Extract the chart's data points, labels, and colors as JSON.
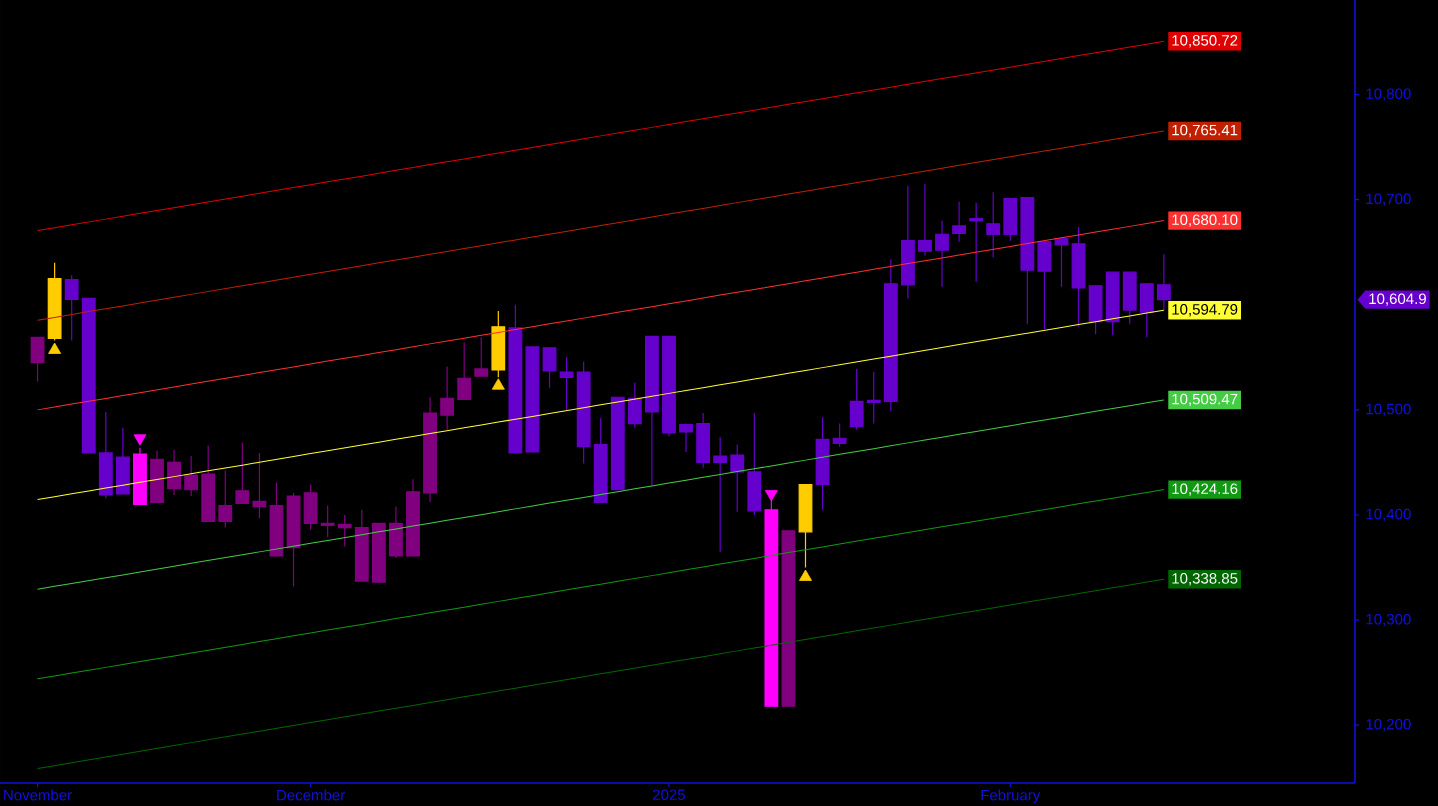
{
  "chart_data": {
    "type": "candlestick",
    "categories": [
      "November",
      null,
      null,
      null,
      null,
      null,
      null,
      null,
      null,
      null,
      null,
      null,
      null,
      null,
      null,
      null,
      "December",
      null,
      null,
      null,
      null,
      null,
      null,
      null,
      null,
      null,
      null,
      null,
      null,
      null,
      null,
      null,
      null,
      null,
      null,
      null,
      null,
      "2025",
      null,
      null,
      null,
      null,
      null,
      null,
      null,
      null,
      null,
      null,
      null,
      null,
      null,
      null,
      null,
      null,
      null,
      null,
      null,
      "February",
      null,
      null,
      null,
      null,
      null,
      null,
      null,
      null,
      null
    ],
    "ohlc": [
      [
        10545,
        10569,
        10527,
        10569
      ],
      [
        10568,
        10640,
        10566,
        10625
      ],
      [
        10624,
        10628,
        10566,
        10605
      ],
      [
        10459,
        10606,
        10459,
        10606
      ],
      [
        10459,
        10498,
        10416,
        10419
      ],
      [
        10420,
        10483,
        10420,
        10455
      ],
      [
        10458,
        10464,
        10410,
        10410
      ],
      [
        10412,
        10461,
        10412,
        10453
      ],
      [
        10450,
        10462,
        10419,
        10425
      ],
      [
        10424,
        10456,
        10418,
        10438
      ],
      [
        10439,
        10466,
        10394,
        10394
      ],
      [
        10394,
        10442,
        10388,
        10409
      ],
      [
        10411,
        10469,
        10411,
        10423
      ],
      [
        10413,
        10459,
        10397,
        10408
      ],
      [
        10409,
        10431,
        10361,
        10361
      ],
      [
        10369,
        10421,
        10332,
        10418
      ],
      [
        10421,
        10429,
        10386,
        10392
      ],
      [
        10392,
        10409,
        10379,
        10390
      ],
      [
        10391,
        10400,
        10370,
        10388
      ],
      [
        10388,
        10405,
        10337,
        10337
      ],
      [
        10392,
        10392,
        10336,
        10336
      ],
      [
        10392,
        10408,
        10359,
        10361
      ],
      [
        10361,
        10434,
        10361,
        10422
      ],
      [
        10421,
        10512,
        10412,
        10497
      ],
      [
        10495,
        10541,
        10481,
        10511
      ],
      [
        10510,
        10564,
        10510,
        10530
      ],
      [
        10532,
        10569,
        10532,
        10539
      ],
      [
        10538,
        10594,
        10531,
        10579
      ],
      [
        10578,
        10600,
        10459,
        10459
      ],
      [
        10460,
        10560,
        10460,
        10560
      ],
      [
        10559,
        10559,
        10521,
        10537
      ],
      [
        10536,
        10550,
        10500,
        10531
      ],
      [
        10536,
        10546,
        10449,
        10465
      ],
      [
        10467,
        10492,
        10412,
        10412
      ],
      [
        10424,
        10512,
        10424,
        10512
      ],
      [
        10511,
        10526,
        10483,
        10487
      ],
      [
        10498,
        10570,
        10428,
        10570
      ],
      [
        10570,
        10570,
        10475,
        10478
      ],
      [
        10479,
        10487,
        10460,
        10486
      ],
      [
        10487,
        10497,
        10445,
        10450
      ],
      [
        10450,
        10474,
        10365,
        10456
      ],
      [
        10457,
        10467,
        10403,
        10441
      ],
      [
        10441,
        10497,
        10400,
        10404
      ],
      [
        10405,
        10414,
        10218,
        10218
      ],
      [
        10385,
        10385,
        10218,
        10218
      ],
      [
        10384,
        10429,
        10350,
        10429
      ],
      [
        10429,
        10493,
        10405,
        10472
      ],
      [
        10468,
        10487,
        10465,
        10473
      ],
      [
        10484,
        10539,
        10481,
        10508
      ],
      [
        10507,
        10536,
        10487,
        10509
      ],
      [
        10508,
        10643,
        10499,
        10620
      ],
      [
        10619,
        10713,
        10606,
        10661
      ],
      [
        10661,
        10715,
        10647,
        10651
      ],
      [
        10652,
        10680,
        10617,
        10667
      ],
      [
        10668,
        10698,
        10660,
        10675
      ],
      [
        10680,
        10697,
        10622,
        10682
      ],
      [
        10677,
        10707,
        10645,
        10667
      ],
      [
        10667,
        10701,
        10661,
        10701
      ],
      [
        10702,
        10702,
        10582,
        10633
      ],
      [
        10632,
        10660,
        10577,
        10660
      ],
      [
        10657,
        10664,
        10617,
        10663
      ],
      [
        10658,
        10674,
        10579,
        10616
      ],
      [
        10618,
        10618,
        10572,
        10584
      ],
      [
        10584,
        10631,
        10571,
        10631
      ],
      [
        10631,
        10631,
        10582,
        10595
      ],
      [
        10593,
        10620,
        10569,
        10620
      ],
      [
        10619,
        10648,
        10595,
        10604.9
      ]
    ],
    "colors": [
      "#800080",
      "#ffcc00",
      "#6600cc",
      "#6600cc",
      "#6600cc",
      "#6600cc",
      "#ff00ff",
      "#800080",
      "#800080",
      "#800080",
      "#800080",
      "#800080",
      "#800080",
      "#800080",
      "#800080",
      "#800080",
      "#800080",
      "#800080",
      "#800080",
      "#800080",
      "#800080",
      "#800080",
      "#800080",
      "#800080",
      "#800080",
      "#800080",
      "#800080",
      "#ffcc00",
      "#6600cc",
      "#6600cc",
      "#6600cc",
      "#6600cc",
      "#6600cc",
      "#6600cc",
      "#6600cc",
      "#6600cc",
      "#6600cc",
      "#6600cc",
      "#6600cc",
      "#6600cc",
      "#6600cc",
      "#6600cc",
      "#6600cc",
      "#ff00ff",
      "#800080",
      "#ffcc00",
      "#6600cc",
      "#6600cc",
      "#6600cc",
      "#6600cc",
      "#6600cc",
      "#6600cc",
      "#6600cc",
      "#6600cc",
      "#6600cc",
      "#6600cc",
      "#6600cc",
      "#6600cc",
      "#6600cc",
      "#6600cc",
      "#6600cc",
      "#6600cc",
      "#6600cc",
      "#6600cc",
      "#6600cc",
      "#6600cc",
      "#6600cc"
    ],
    "series": [
      {
        "type": "line",
        "color": "#e00000",
        "values": [
          10670.6,
          10673.3,
          10676.1,
          10678.8,
          10681.5,
          10684.2,
          10687.0,
          10689.7,
          10692.4,
          10695.2,
          10697.9,
          10700.6,
          10703.3,
          10706.1,
          10708.8,
          10711.5,
          10714.3,
          10717.0,
          10719.7,
          10722.4,
          10725.2,
          10727.9,
          10730.6,
          10733.4,
          10736.1,
          10738.8,
          10741.5,
          10744.3,
          10747.0,
          10749.7,
          10752.5,
          10755.2,
          10757.9,
          10760.7,
          10763.4,
          10766.1,
          10768.8,
          10771.6,
          10774.3,
          10777.0,
          10779.8,
          10782.5,
          10785.2,
          10787.9,
          10790.7,
          10793.4,
          10796.1,
          10798.9,
          10801.6,
          10804.3,
          10807.0,
          10809.8,
          10812.5,
          10815.2,
          10818.0,
          10820.7,
          10823.4,
          10826.1,
          10828.9,
          10831.6,
          10834.3,
          10837.1,
          10839.8,
          10842.5,
          10845.2,
          10848.0,
          10850.72
        ],
        "value_labels": [
          null,
          null,
          null,
          null,
          null,
          null,
          null,
          null,
          null,
          null,
          null,
          null,
          null,
          null,
          null,
          null,
          null,
          null,
          null,
          null,
          null,
          null,
          null,
          null,
          null,
          null,
          null,
          null,
          null,
          null,
          null,
          null,
          null,
          null,
          null,
          null,
          null,
          null,
          null,
          null,
          null,
          null,
          null,
          null,
          null,
          null,
          null,
          null,
          null,
          null,
          null,
          null,
          null,
          null,
          null,
          null,
          null,
          null,
          null,
          null,
          null,
          null,
          null,
          null,
          null,
          null,
          "10,850.72"
        ]
      },
      {
        "type": "line",
        "color": "#c02000",
        "values": [
          10585.3,
          10588.0,
          10590.8,
          10593.5,
          10596.2,
          10598.9,
          10601.7,
          10604.4,
          10607.1,
          10609.9,
          10612.6,
          10615.3,
          10618.0,
          10620.8,
          10623.5,
          10626.2,
          10629.0,
          10631.7,
          10634.4,
          10637.1,
          10639.9,
          10642.6,
          10645.3,
          10648.1,
          10650.8,
          10653.5,
          10656.2,
          10659.0,
          10661.7,
          10664.4,
          10667.2,
          10669.9,
          10672.6,
          10675.4,
          10678.1,
          10680.8,
          10683.5,
          10686.3,
          10689.0,
          10691.7,
          10694.5,
          10697.2,
          10699.9,
          10702.6,
          10705.4,
          10708.1,
          10710.8,
          10713.6,
          10716.3,
          10719.0,
          10721.7,
          10724.5,
          10727.2,
          10729.9,
          10732.7,
          10735.4,
          10738.1,
          10740.8,
          10743.6,
          10746.3,
          10749.0,
          10751.8,
          10754.5,
          10757.2,
          10759.9,
          10762.7,
          10765.41
        ],
        "value_labels": [
          null,
          null,
          null,
          null,
          null,
          null,
          null,
          null,
          null,
          null,
          null,
          null,
          null,
          null,
          null,
          null,
          null,
          null,
          null,
          null,
          null,
          null,
          null,
          null,
          null,
          null,
          null,
          null,
          null,
          null,
          null,
          null,
          null,
          null,
          null,
          null,
          null,
          null,
          null,
          null,
          null,
          null,
          null,
          null,
          null,
          null,
          null,
          null,
          null,
          null,
          null,
          null,
          null,
          null,
          null,
          null,
          null,
          null,
          null,
          null,
          null,
          null,
          null,
          null,
          null,
          null,
          "10,765.41"
        ]
      },
      {
        "type": "line",
        "color": "#ff3030",
        "values": [
          10500.0,
          10502.7,
          10505.5,
          10508.2,
          10510.9,
          10513.6,
          10516.4,
          10519.1,
          10521.8,
          10524.6,
          10527.3,
          10530.0,
          10532.7,
          10535.5,
          10538.2,
          10540.9,
          10543.7,
          10546.4,
          10549.1,
          10551.8,
          10554.6,
          10557.3,
          10560.0,
          10562.8,
          10565.5,
          10568.2,
          10570.9,
          10573.7,
          10576.4,
          10579.1,
          10581.9,
          10584.6,
          10587.3,
          10590.1,
          10592.8,
          10595.5,
          10598.2,
          10601.0,
          10603.7,
          10606.4,
          10609.2,
          10611.9,
          10614.6,
          10617.3,
          10620.1,
          10622.8,
          10625.5,
          10628.3,
          10631.0,
          10633.7,
          10636.4,
          10639.2,
          10641.9,
          10644.6,
          10647.4,
          10650.1,
          10652.8,
          10655.5,
          10658.3,
          10661.0,
          10663.7,
          10666.5,
          10669.2,
          10671.9,
          10674.6,
          10677.4,
          10680.1
        ],
        "value_labels": [
          null,
          null,
          null,
          null,
          null,
          null,
          null,
          null,
          null,
          null,
          null,
          null,
          null,
          null,
          null,
          null,
          null,
          null,
          null,
          null,
          null,
          null,
          null,
          null,
          null,
          null,
          null,
          null,
          null,
          null,
          null,
          null,
          null,
          null,
          null,
          null,
          null,
          null,
          null,
          null,
          null,
          null,
          null,
          null,
          null,
          null,
          null,
          null,
          null,
          null,
          null,
          null,
          null,
          null,
          null,
          null,
          null,
          null,
          null,
          null,
          null,
          null,
          null,
          null,
          null,
          null,
          "10,680.10"
        ]
      },
      {
        "type": "line",
        "color": "#ffff33",
        "values": [
          10414.7,
          10417.4,
          10420.2,
          10422.9,
          10425.6,
          10428.3,
          10431.1,
          10433.8,
          10436.5,
          10439.3,
          10442.0,
          10444.7,
          10447.4,
          10450.2,
          10452.9,
          10455.6,
          10458.4,
          10461.1,
          10463.8,
          10466.5,
          10469.3,
          10472.0,
          10474.7,
          10477.5,
          10480.2,
          10482.9,
          10485.6,
          10488.4,
          10491.1,
          10493.8,
          10496.6,
          10499.3,
          10502.0,
          10504.8,
          10507.5,
          10510.2,
          10512.9,
          10515.7,
          10518.4,
          10521.1,
          10523.9,
          10526.6,
          10529.3,
          10532.0,
          10534.8,
          10537.5,
          10540.2,
          10543.0,
          10545.7,
          10548.4,
          10551.1,
          10553.9,
          10556.6,
          10559.3,
          10562.1,
          10564.8,
          10567.5,
          10570.2,
          10573.0,
          10575.7,
          10578.4,
          10581.2,
          10583.9,
          10586.6,
          10589.3,
          10592.1,
          10594.79
        ],
        "value_labels": [
          null,
          null,
          null,
          null,
          null,
          null,
          null,
          null,
          null,
          null,
          null,
          null,
          null,
          null,
          null,
          null,
          null,
          null,
          null,
          null,
          null,
          null,
          null,
          null,
          null,
          null,
          null,
          null,
          null,
          null,
          null,
          null,
          null,
          null,
          null,
          null,
          null,
          null,
          null,
          null,
          null,
          null,
          null,
          null,
          null,
          null,
          null,
          null,
          null,
          null,
          null,
          null,
          null,
          null,
          null,
          null,
          null,
          null,
          null,
          null,
          null,
          null,
          null,
          null,
          null,
          null,
          "10,594.79"
        ]
      },
      {
        "type": "line",
        "color": "#44cc44",
        "values": [
          10329.4,
          10332.1,
          10334.9,
          10337.6,
          10340.3,
          10343.0,
          10345.8,
          10348.5,
          10351.2,
          10354.0,
          10356.7,
          10359.4,
          10362.1,
          10364.9,
          10367.6,
          10370.3,
          10373.1,
          10375.8,
          10378.5,
          10381.2,
          10384.0,
          10386.7,
          10389.4,
          10392.2,
          10394.9,
          10397.6,
          10400.3,
          10403.1,
          10405.8,
          10408.5,
          10411.3,
          10414.0,
          10416.7,
          10419.5,
          10422.2,
          10424.9,
          10427.6,
          10430.4,
          10433.1,
          10435.8,
          10438.6,
          10441.3,
          10444.0,
          10446.7,
          10449.5,
          10452.2,
          10454.9,
          10457.7,
          10460.4,
          10463.1,
          10465.8,
          10468.6,
          10471.3,
          10474.0,
          10476.8,
          10479.5,
          10482.2,
          10484.9,
          10487.7,
          10490.4,
          10493.1,
          10495.9,
          10498.6,
          10501.3,
          10504.0,
          10506.8,
          10509.47
        ],
        "value_labels": [
          null,
          null,
          null,
          null,
          null,
          null,
          null,
          null,
          null,
          null,
          null,
          null,
          null,
          null,
          null,
          null,
          null,
          null,
          null,
          null,
          null,
          null,
          null,
          null,
          null,
          null,
          null,
          null,
          null,
          null,
          null,
          null,
          null,
          null,
          null,
          null,
          null,
          null,
          null,
          null,
          null,
          null,
          null,
          null,
          null,
          null,
          null,
          null,
          null,
          null,
          null,
          null,
          null,
          null,
          null,
          null,
          null,
          null,
          null,
          null,
          null,
          null,
          null,
          null,
          null,
          null,
          "10,509.47"
        ]
      },
      {
        "type": "line",
        "color": "#119911",
        "values": [
          10244.1,
          10246.8,
          10249.6,
          10252.3,
          10255.0,
          10257.7,
          10260.5,
          10263.2,
          10265.9,
          10268.7,
          10271.4,
          10274.1,
          10276.8,
          10279.6,
          10282.3,
          10285.0,
          10287.8,
          10290.5,
          10293.2,
          10295.9,
          10298.7,
          10301.4,
          10304.1,
          10306.9,
          10309.6,
          10312.3,
          10315.0,
          10317.8,
          10320.5,
          10323.2,
          10326.0,
          10328.7,
          10331.4,
          10334.2,
          10336.9,
          10339.6,
          10342.3,
          10345.1,
          10347.8,
          10350.5,
          10353.3,
          10356.0,
          10358.7,
          10361.4,
          10364.2,
          10366.9,
          10369.6,
          10372.4,
          10375.1,
          10377.8,
          10380.5,
          10383.3,
          10386.0,
          10388.7,
          10391.5,
          10394.2,
          10396.9,
          10399.6,
          10402.4,
          10405.1,
          10407.8,
          10410.6,
          10413.3,
          10416.0,
          10418.7,
          10421.5,
          10424.16
        ],
        "value_labels": [
          null,
          null,
          null,
          null,
          null,
          null,
          null,
          null,
          null,
          null,
          null,
          null,
          null,
          null,
          null,
          null,
          null,
          null,
          null,
          null,
          null,
          null,
          null,
          null,
          null,
          null,
          null,
          null,
          null,
          null,
          null,
          null,
          null,
          null,
          null,
          null,
          null,
          null,
          null,
          null,
          null,
          null,
          null,
          null,
          null,
          null,
          null,
          null,
          null,
          null,
          null,
          null,
          null,
          null,
          null,
          null,
          null,
          null,
          null,
          null,
          null,
          null,
          null,
          null,
          null,
          null,
          "10,424.16"
        ]
      },
      {
        "type": "line",
        "color": "#006600",
        "values": [
          10158.8,
          10161.5,
          10164.3,
          10167.0,
          10169.7,
          10172.4,
          10175.2,
          10177.9,
          10180.6,
          10183.4,
          10186.1,
          10188.8,
          10191.5,
          10194.3,
          10197.0,
          10199.7,
          10202.5,
          10205.2,
          10207.9,
          10210.6,
          10213.4,
          10216.1,
          10218.8,
          10221.6,
          10224.3,
          10227.0,
          10229.7,
          10232.5,
          10235.2,
          10237.9,
          10240.7,
          10243.4,
          10246.1,
          10248.9,
          10251.6,
          10254.3,
          10257.0,
          10259.8,
          10262.5,
          10265.2,
          10268.0,
          10270.7,
          10273.4,
          10276.1,
          10278.9,
          10281.6,
          10284.3,
          10287.1,
          10289.8,
          10292.5,
          10295.2,
          10298.0,
          10300.7,
          10303.4,
          10306.2,
          10308.9,
          10311.6,
          10314.3,
          10317.1,
          10319.8,
          10322.5,
          10325.3,
          10328.0,
          10330.7,
          10333.4,
          10336.2,
          10338.85
        ],
        "value_labels": [
          null,
          null,
          null,
          null,
          null,
          null,
          null,
          null,
          null,
          null,
          null,
          null,
          null,
          null,
          null,
          null,
          null,
          null,
          null,
          null,
          null,
          null,
          null,
          null,
          null,
          null,
          null,
          null,
          null,
          null,
          null,
          null,
          null,
          null,
          null,
          null,
          null,
          null,
          null,
          null,
          null,
          null,
          null,
          null,
          null,
          null,
          null,
          null,
          null,
          null,
          null,
          null,
          null,
          null,
          null,
          null,
          null,
          null,
          null,
          null,
          null,
          null,
          null,
          null,
          null,
          null,
          "10,338.85"
        ]
      },
      {
        "type": "scatter",
        "marker": "triangle",
        "color": "#ffcc00",
        "values": [
          null,
          10557,
          null,
          null,
          null,
          null,
          null,
          null,
          null,
          null,
          null,
          null,
          null,
          null,
          null,
          null,
          null,
          null,
          null,
          null,
          null,
          null,
          null,
          null,
          null,
          null,
          null,
          10523,
          null,
          null,
          null,
          null,
          null,
          null,
          null,
          null,
          null,
          null,
          null,
          null,
          null,
          null,
          null,
          null,
          null,
          10341,
          null,
          null,
          null,
          null,
          null,
          null,
          null,
          null,
          null,
          null,
          null,
          null,
          null,
          null,
          null,
          null,
          null,
          null,
          null,
          null,
          null
        ]
      },
      {
        "type": "scatter",
        "marker": "triangle",
        "color": "#ff00ff",
        "values": [
          null,
          null,
          null,
          null,
          null,
          null,
          10473,
          null,
          null,
          null,
          null,
          null,
          null,
          null,
          null,
          null,
          null,
          null,
          null,
          null,
          null,
          null,
          null,
          null,
          null,
          null,
          null,
          null,
          null,
          null,
          null,
          null,
          null,
          null,
          null,
          null,
          null,
          null,
          null,
          null,
          null,
          null,
          null,
          10420,
          null,
          null,
          null,
          null,
          null,
          null,
          null,
          null,
          null,
          null,
          null,
          null,
          null,
          null,
          null,
          null,
          null,
          null,
          null,
          null,
          null,
          null,
          null
        ]
      }
    ],
    "annotations": [
      "10,604.9"
    ],
    "ylim": [
      10145,
      10890
    ],
    "yticks": [
      {
        "value": 10200,
        "label": "10,200"
      },
      {
        "value": 10300,
        "label": "10,300"
      },
      {
        "value": 10400,
        "label": "10,400"
      },
      {
        "value": 10500,
        "label": "10,500"
      },
      {
        "value": 10700,
        "label": "10,700"
      },
      {
        "value": 10800,
        "label": "10,800"
      }
    ]
  }
}
